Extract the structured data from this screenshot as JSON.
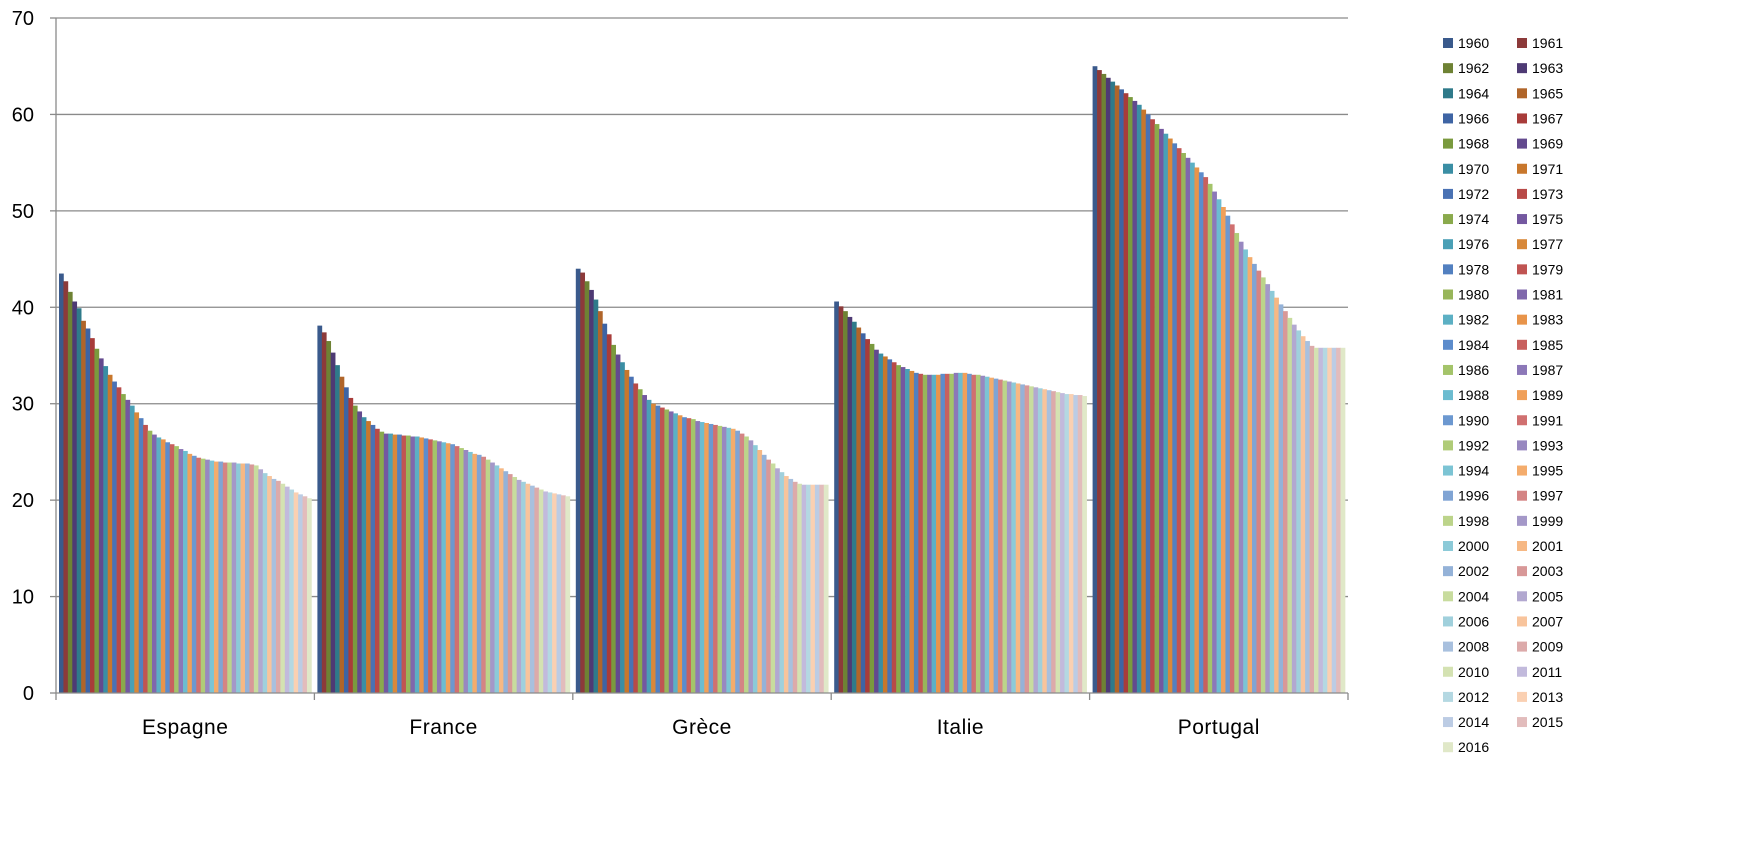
{
  "chart_data": {
    "type": "bar",
    "title": "",
    "xlabel": "",
    "ylabel": "",
    "ylim": [
      0,
      70
    ],
    "yticks": [
      0,
      10,
      20,
      30,
      40,
      50,
      60,
      70
    ],
    "grid": true,
    "legend_placement": "right",
    "categories": [
      "Espagne",
      "France",
      "Grèce",
      "Italie",
      "Portugal"
    ],
    "series_names": [
      "1960",
      "1961",
      "1962",
      "1963",
      "1964",
      "1965",
      "1966",
      "1967",
      "1968",
      "1969",
      "1970",
      "1971",
      "1972",
      "1973",
      "1974",
      "1975",
      "1976",
      "1977",
      "1978",
      "1979",
      "1980",
      "1981",
      "1982",
      "1983",
      "1984",
      "1985",
      "1986",
      "1987",
      "1988",
      "1989",
      "1990",
      "1991",
      "1992",
      "1993",
      "1994",
      "1995",
      "1996",
      "1997",
      "1998",
      "1999",
      "2000",
      "2001",
      "2002",
      "2003",
      "2004",
      "2005",
      "2006",
      "2007",
      "2008",
      "2009",
      "2010",
      "2011",
      "2012",
      "2013",
      "2014",
      "2015",
      "2016"
    ],
    "series_colors": [
      "#3a5a8c",
      "#8c3a3a",
      "#6e8234",
      "#4e3a74",
      "#2f7a8a",
      "#b0652a",
      "#3e64a4",
      "#a83c3a",
      "#7a9a3e",
      "#634a8e",
      "#3a8ea4",
      "#c8772c",
      "#4a72b4",
      "#b84a48",
      "#8aaa4c",
      "#7458a0",
      "#4aa0b6",
      "#d8883a",
      "#5280c0",
      "#c05452",
      "#98b65a",
      "#8068ac",
      "#5cb0c4",
      "#e8944a",
      "#5c8ccc",
      "#c8605e",
      "#a4c46a",
      "#8c78b8",
      "#6cbcd0",
      "#f0a05a",
      "#6c98d0",
      "#d07070",
      "#b0cc78",
      "#9888c0",
      "#7cc4d4",
      "#f4ac6c",
      "#80a4d4",
      "#d48484",
      "#bcd48a",
      "#a498c8",
      "#8ccad8",
      "#f6b884",
      "#94b2d8",
      "#d89898",
      "#c8dc9e",
      "#b2a8d0",
      "#a0d0dc",
      "#f8c49c",
      "#a8c0de",
      "#dcaaaa",
      "#d4e2b2",
      "#c2badc",
      "#b4d8e2",
      "#fad0b2",
      "#bccce4",
      "#e2bcbc",
      "#e0e8c8"
    ],
    "values": {
      "Espagne": [
        43.5,
        42.7,
        41.6,
        40.6,
        39.9,
        38.6,
        37.8,
        36.8,
        35.7,
        34.7,
        33.9,
        33.0,
        32.3,
        31.7,
        31.0,
        30.4,
        29.8,
        29.1,
        28.5,
        27.8,
        27.2,
        26.8,
        26.5,
        26.3,
        26.0,
        25.8,
        25.6,
        25.3,
        25.1,
        24.8,
        24.6,
        24.4,
        24.3,
        24.2,
        24.1,
        24.0,
        24.0,
        23.9,
        23.9,
        23.9,
        23.8,
        23.8,
        23.8,
        23.7,
        23.6,
        23.2,
        22.8,
        22.5,
        22.2,
        22.0,
        21.7,
        21.4,
        21.1,
        20.8,
        20.6,
        20.4,
        20.2
      ],
      "France": [
        38.1,
        37.4,
        36.5,
        35.3,
        34.0,
        32.8,
        31.7,
        30.6,
        29.8,
        29.2,
        28.6,
        28.2,
        27.8,
        27.4,
        27.1,
        26.9,
        26.9,
        26.8,
        26.8,
        26.7,
        26.7,
        26.6,
        26.6,
        26.5,
        26.4,
        26.3,
        26.2,
        26.1,
        26.0,
        25.9,
        25.8,
        25.6,
        25.4,
        25.2,
        25.0,
        24.8,
        24.7,
        24.5,
        24.2,
        23.9,
        23.6,
        23.3,
        23.0,
        22.7,
        22.4,
        22.1,
        21.9,
        21.7,
        21.5,
        21.3,
        21.1,
        20.9,
        20.8,
        20.7,
        20.6,
        20.5,
        20.4
      ],
      "Grèce": [
        44.0,
        43.6,
        42.7,
        41.8,
        40.8,
        39.6,
        38.3,
        37.2,
        36.1,
        35.1,
        34.3,
        33.5,
        32.8,
        32.1,
        31.5,
        30.9,
        30.4,
        30.0,
        29.8,
        29.6,
        29.4,
        29.2,
        29.0,
        28.8,
        28.6,
        28.5,
        28.4,
        28.2,
        28.1,
        28.0,
        27.9,
        27.8,
        27.7,
        27.6,
        27.5,
        27.4,
        27.2,
        26.9,
        26.6,
        26.2,
        25.7,
        25.2,
        24.7,
        24.2,
        23.8,
        23.3,
        22.9,
        22.5,
        22.2,
        21.9,
        21.7,
        21.6,
        21.6,
        21.6,
        21.6,
        21.6,
        21.6
      ],
      "Italie": [
        40.6,
        40.1,
        39.6,
        39.0,
        38.5,
        37.9,
        37.3,
        36.7,
        36.2,
        35.6,
        35.2,
        34.9,
        34.6,
        34.3,
        34.0,
        33.8,
        33.6,
        33.4,
        33.2,
        33.1,
        33.0,
        33.0,
        33.0,
        33.0,
        33.1,
        33.1,
        33.1,
        33.2,
        33.2,
        33.2,
        33.1,
        33.0,
        33.0,
        32.9,
        32.8,
        32.7,
        32.6,
        32.5,
        32.4,
        32.3,
        32.2,
        32.1,
        32.0,
        31.9,
        31.8,
        31.7,
        31.6,
        31.5,
        31.4,
        31.3,
        31.2,
        31.1,
        31.0,
        31.0,
        30.9,
        30.9,
        30.8
      ],
      "Portugal": [
        65.0,
        64.6,
        64.2,
        63.8,
        63.4,
        63.0,
        62.6,
        62.2,
        61.8,
        61.4,
        61.0,
        60.5,
        60.0,
        59.5,
        59.0,
        58.5,
        58.0,
        57.5,
        57.0,
        56.5,
        56.0,
        55.5,
        55.0,
        54.5,
        54.0,
        53.5,
        52.8,
        52.0,
        51.2,
        50.4,
        49.5,
        48.6,
        47.7,
        46.8,
        46.0,
        45.2,
        44.5,
        43.8,
        43.1,
        42.4,
        41.7,
        41.0,
        40.3,
        39.6,
        38.9,
        38.2,
        37.6,
        37.0,
        36.5,
        36.0,
        35.8,
        35.8,
        35.8,
        35.8,
        35.8,
        35.8,
        35.8
      ]
    }
  }
}
